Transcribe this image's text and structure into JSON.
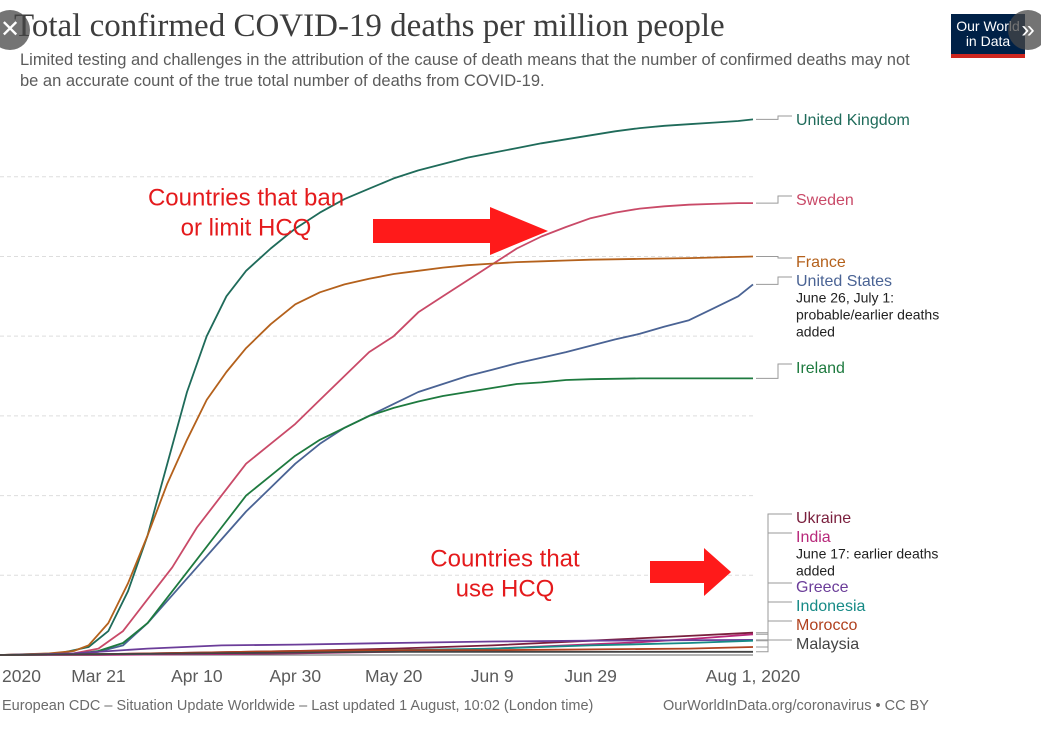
{
  "title": "Total confirmed COVID-19 deaths per million people",
  "subtitle": "Limited testing and challenges in the attribution of the cause of death means that the number of confirmed deaths may not be an accurate count of the true total number of deaths from COVID-19.",
  "logo": {
    "line1": "Our World",
    "line2": "in Data"
  },
  "controls": {
    "close_icon": "close-icon",
    "next_icon": "chevron-right-icon"
  },
  "footer": {
    "source": "European CDC – Situation Update Worldwide – Last updated 1 August, 10:02 (London time)",
    "link": "OurWorldInData.org/coronavirus",
    "license": " • CC BY"
  },
  "colors": {
    "title": "#3d3d3d",
    "annotation_red": "#e41a1c",
    "arrow_red": "#ff1a1a",
    "grid": "#dddddd",
    "axis": "#666666"
  },
  "annotations": [
    {
      "id": "ban",
      "lines": [
        "Countries that ban",
        "or limit HCQ"
      ]
    },
    {
      "id": "use",
      "lines": [
        "Countries that",
        "use HCQ"
      ]
    }
  ],
  "chart_data": {
    "type": "line",
    "x_unit": "days since Mar 1 2020",
    "x_ticks": [
      {
        "label": "2020",
        "x": 0
      },
      {
        "label": "Mar 21",
        "x": 20
      },
      {
        "label": "Apr 10",
        "x": 40
      },
      {
        "label": "Apr 30",
        "x": 60
      },
      {
        "label": "May 20",
        "x": 80
      },
      {
        "label": "Jun 9",
        "x": 100
      },
      {
        "label": "Jun 29",
        "x": 120
      },
      {
        "label": "Aug 1, 2020",
        "x": 153
      }
    ],
    "xlim": [
      0,
      153
    ],
    "ylim": [
      0,
      680
    ],
    "y_gridlines": [
      100,
      200,
      300,
      400,
      500,
      600
    ],
    "grid": "horizontal dashed",
    "series": [
      {
        "name": "United Kingdom",
        "color": "#1f6b5a",
        "points": [
          [
            0,
            0
          ],
          [
            12,
            2
          ],
          [
            18,
            10
          ],
          [
            22,
            30
          ],
          [
            26,
            80
          ],
          [
            30,
            150
          ],
          [
            34,
            240
          ],
          [
            38,
            330
          ],
          [
            42,
            400
          ],
          [
            46,
            450
          ],
          [
            50,
            482
          ],
          [
            55,
            510
          ],
          [
            60,
            535
          ],
          [
            65,
            555
          ],
          [
            70,
            572
          ],
          [
            75,
            585
          ],
          [
            80,
            598
          ],
          [
            85,
            608
          ],
          [
            90,
            616
          ],
          [
            95,
            624
          ],
          [
            100,
            630
          ],
          [
            105,
            636
          ],
          [
            110,
            642
          ],
          [
            115,
            647
          ],
          [
            120,
            652
          ],
          [
            125,
            657
          ],
          [
            130,
            661
          ],
          [
            135,
            664
          ],
          [
            140,
            666
          ],
          [
            145,
            668
          ],
          [
            150,
            670
          ],
          [
            153,
            672
          ]
        ]
      },
      {
        "name": "Sweden",
        "color": "#c94a68",
        "points": [
          [
            0,
            0
          ],
          [
            15,
            2
          ],
          [
            20,
            8
          ],
          [
            25,
            30
          ],
          [
            30,
            70
          ],
          [
            35,
            110
          ],
          [
            40,
            160
          ],
          [
            45,
            200
          ],
          [
            50,
            240
          ],
          [
            55,
            265
          ],
          [
            60,
            290
          ],
          [
            65,
            320
          ],
          [
            70,
            350
          ],
          [
            75,
            380
          ],
          [
            80,
            400
          ],
          [
            85,
            430
          ],
          [
            90,
            450
          ],
          [
            95,
            470
          ],
          [
            100,
            490
          ],
          [
            105,
            510
          ],
          [
            110,
            525
          ],
          [
            115,
            537
          ],
          [
            120,
            548
          ],
          [
            125,
            555
          ],
          [
            130,
            560
          ],
          [
            135,
            563
          ],
          [
            140,
            565
          ],
          [
            145,
            566
          ],
          [
            150,
            567
          ],
          [
            153,
            567
          ]
        ]
      },
      {
        "name": "France",
        "color": "#b4611c",
        "points": [
          [
            0,
            0
          ],
          [
            10,
            2
          ],
          [
            15,
            5
          ],
          [
            18,
            12
          ],
          [
            22,
            40
          ],
          [
            26,
            90
          ],
          [
            30,
            150
          ],
          [
            34,
            215
          ],
          [
            38,
            270
          ],
          [
            42,
            320
          ],
          [
            46,
            355
          ],
          [
            50,
            385
          ],
          [
            55,
            415
          ],
          [
            60,
            440
          ],
          [
            65,
            455
          ],
          [
            70,
            465
          ],
          [
            75,
            472
          ],
          [
            80,
            478
          ],
          [
            85,
            482
          ],
          [
            90,
            486
          ],
          [
            95,
            489
          ],
          [
            100,
            491
          ],
          [
            105,
            493
          ],
          [
            110,
            494
          ],
          [
            115,
            495
          ],
          [
            120,
            496
          ],
          [
            130,
            497
          ],
          [
            140,
            498
          ],
          [
            153,
            500
          ]
        ]
      },
      {
        "name": "United States",
        "color": "#4a6394",
        "points": [
          [
            0,
            0
          ],
          [
            15,
            1
          ],
          [
            20,
            4
          ],
          [
            25,
            12
          ],
          [
            30,
            40
          ],
          [
            35,
            75
          ],
          [
            40,
            110
          ],
          [
            45,
            145
          ],
          [
            50,
            180
          ],
          [
            55,
            210
          ],
          [
            60,
            240
          ],
          [
            65,
            265
          ],
          [
            70,
            285
          ],
          [
            75,
            300
          ],
          [
            80,
            315
          ],
          [
            85,
            330
          ],
          [
            90,
            340
          ],
          [
            95,
            350
          ],
          [
            100,
            358
          ],
          [
            105,
            366
          ],
          [
            110,
            373
          ],
          [
            115,
            380
          ],
          [
            120,
            388
          ],
          [
            125,
            396
          ],
          [
            130,
            403
          ],
          [
            135,
            412
          ],
          [
            140,
            420
          ],
          [
            145,
            435
          ],
          [
            150,
            450
          ],
          [
            153,
            465
          ]
        ]
      },
      {
        "name": "Ireland",
        "color": "#1e7a3f",
        "points": [
          [
            0,
            0
          ],
          [
            15,
            1
          ],
          [
            20,
            5
          ],
          [
            25,
            15
          ],
          [
            30,
            40
          ],
          [
            35,
            80
          ],
          [
            40,
            120
          ],
          [
            45,
            160
          ],
          [
            50,
            200
          ],
          [
            55,
            225
          ],
          [
            60,
            250
          ],
          [
            65,
            270
          ],
          [
            70,
            285
          ],
          [
            75,
            300
          ],
          [
            80,
            310
          ],
          [
            85,
            318
          ],
          [
            90,
            325
          ],
          [
            95,
            330
          ],
          [
            100,
            335
          ],
          [
            105,
            340
          ],
          [
            110,
            342
          ],
          [
            115,
            345
          ],
          [
            120,
            346
          ],
          [
            130,
            347
          ],
          [
            140,
            347
          ],
          [
            153,
            347
          ]
        ]
      },
      {
        "name": "Ukraine",
        "color": "#7a1f3d",
        "points": [
          [
            0,
            0
          ],
          [
            20,
            1
          ],
          [
            40,
            3
          ],
          [
            60,
            5
          ],
          [
            80,
            8
          ],
          [
            100,
            12
          ],
          [
            120,
            18
          ],
          [
            140,
            24
          ],
          [
            153,
            28
          ]
        ]
      },
      {
        "name": "India",
        "color": "#b8287a",
        "points": [
          [
            0,
            0
          ],
          [
            20,
            0
          ],
          [
            40,
            1
          ],
          [
            60,
            2
          ],
          [
            80,
            4
          ],
          [
            100,
            8
          ],
          [
            115,
            12
          ],
          [
            130,
            16
          ],
          [
            140,
            20
          ],
          [
            153,
            26
          ]
        ]
      },
      {
        "name": "Greece",
        "color": "#6b3d99",
        "points": [
          [
            0,
            0
          ],
          [
            15,
            2
          ],
          [
            30,
            8
          ],
          [
            45,
            12
          ],
          [
            60,
            13
          ],
          [
            80,
            15
          ],
          [
            100,
            17
          ],
          [
            120,
            18
          ],
          [
            153,
            19
          ]
        ]
      },
      {
        "name": "Indonesia",
        "color": "#168a86",
        "points": [
          [
            0,
            0
          ],
          [
            20,
            1
          ],
          [
            40,
            2
          ],
          [
            60,
            4
          ],
          [
            80,
            6
          ],
          [
            100,
            8
          ],
          [
            120,
            12
          ],
          [
            140,
            15
          ],
          [
            153,
            18
          ]
        ]
      },
      {
        "name": "Morocco",
        "color": "#b0411e",
        "points": [
          [
            0,
            0
          ],
          [
            20,
            1
          ],
          [
            40,
            3
          ],
          [
            60,
            5
          ],
          [
            80,
            6
          ],
          [
            100,
            6
          ],
          [
            120,
            7
          ],
          [
            140,
            8
          ],
          [
            153,
            10
          ]
        ]
      },
      {
        "name": "Malaysia",
        "color": "#444444",
        "points": [
          [
            0,
            0
          ],
          [
            20,
            1
          ],
          [
            40,
            2
          ],
          [
            60,
            3
          ],
          [
            80,
            4
          ],
          [
            100,
            4
          ],
          [
            120,
            4
          ],
          [
            153,
            4
          ]
        ]
      }
    ],
    "legend": [
      {
        "name": "United Kingdom",
        "color": "#1f6b5a"
      },
      {
        "name": "Sweden",
        "color": "#c94a68"
      },
      {
        "name": "France",
        "color": "#b4611c"
      },
      {
        "name": "United States",
        "color": "#4a6394",
        "note": [
          "June 26, July 1:",
          "probable/earlier deaths",
          "added"
        ]
      },
      {
        "name": "Ireland",
        "color": "#1e7a3f"
      },
      {
        "name": "Ukraine",
        "color": "#7a1f3d"
      },
      {
        "name": "India",
        "color": "#b8287a",
        "note": [
          "June 17: earlier deaths",
          "added"
        ]
      },
      {
        "name": "Greece",
        "color": "#6b3d99"
      },
      {
        "name": "Indonesia",
        "color": "#168a86"
      },
      {
        "name": "Morocco",
        "color": "#b0411e"
      },
      {
        "name": "Malaysia",
        "color": "#444444"
      }
    ]
  }
}
